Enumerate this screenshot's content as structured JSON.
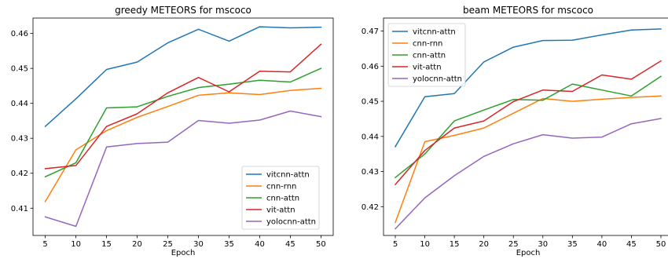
{
  "chart_data": [
    {
      "type": "line",
      "title": "greedy METEORS for mscoco",
      "xlabel": "Epoch",
      "ylabel": "",
      "x": [
        5,
        10,
        15,
        20,
        25,
        30,
        35,
        40,
        45,
        50
      ],
      "xlim": [
        3,
        52
      ],
      "ylim": [
        0.4022,
        0.4644
      ],
      "yticks": [
        0.41,
        0.42,
        0.43,
        0.44,
        0.45,
        0.46
      ],
      "ytick_labels": [
        "0.41",
        "0.42",
        "0.43",
        "0.44",
        "0.45",
        "0.46"
      ],
      "legend_loc": "lower-right",
      "grid": false,
      "series": [
        {
          "name": "vitcnn-attn",
          "color": "#1f77b4",
          "values": [
            0.4334,
            0.4413,
            0.4497,
            0.4518,
            0.4573,
            0.4612,
            0.4578,
            0.4619,
            0.4616,
            0.4618
          ]
        },
        {
          "name": "cnn-rnn",
          "color": "#ff7f0e",
          "values": [
            0.4119,
            0.4267,
            0.4322,
            0.436,
            0.4391,
            0.4423,
            0.443,
            0.4425,
            0.4437,
            0.4443
          ]
        },
        {
          "name": "cnn-attn",
          "color": "#2ca02c",
          "values": [
            0.419,
            0.423,
            0.4387,
            0.439,
            0.442,
            0.4445,
            0.4455,
            0.4466,
            0.4461,
            0.45
          ]
        },
        {
          "name": "vit-attn",
          "color": "#d62728",
          "values": [
            0.4213,
            0.4222,
            0.4334,
            0.437,
            0.443,
            0.4474,
            0.4433,
            0.4492,
            0.449,
            0.4569
          ]
        },
        {
          "name": "yolocnn-attn",
          "color": "#9467bd",
          "values": [
            0.4075,
            0.4048,
            0.4275,
            0.4285,
            0.4289,
            0.4351,
            0.4343,
            0.4352,
            0.4378,
            0.4362
          ]
        }
      ]
    },
    {
      "type": "line",
      "title": "beam METEORS for mscoco",
      "xlabel": "Epoch",
      "ylabel": "",
      "x": [
        5,
        10,
        15,
        20,
        25,
        30,
        35,
        40,
        45,
        50
      ],
      "xlim": [
        3,
        52
      ],
      "ylim": [
        0.4118,
        0.4737
      ],
      "yticks": [
        0.42,
        0.43,
        0.44,
        0.45,
        0.46,
        0.47
      ],
      "ytick_labels": [
        "0.42",
        "0.43",
        "0.44",
        "0.45",
        "0.46",
        "0.47"
      ],
      "legend_loc": "upper-left",
      "grid": false,
      "series": [
        {
          "name": "vitcnn-attn",
          "color": "#1f77b4",
          "values": [
            0.4371,
            0.4513,
            0.4522,
            0.4612,
            0.4654,
            0.4673,
            0.4674,
            0.4689,
            0.4703,
            0.4706
          ]
        },
        {
          "name": "cnn-rnn",
          "color": "#ff7f0e",
          "values": [
            0.4155,
            0.4385,
            0.4403,
            0.4424,
            0.4466,
            0.4508,
            0.45,
            0.4506,
            0.4511,
            0.4515
          ]
        },
        {
          "name": "cnn-attn",
          "color": "#2ca02c",
          "values": [
            0.4283,
            0.435,
            0.4444,
            0.4475,
            0.4505,
            0.4503,
            0.4549,
            0.4532,
            0.4515,
            0.4571
          ]
        },
        {
          "name": "vit-attn",
          "color": "#d62728",
          "values": [
            0.4263,
            0.436,
            0.4424,
            0.4444,
            0.4499,
            0.4532,
            0.4528,
            0.4575,
            0.4563,
            0.4615
          ]
        },
        {
          "name": "yolocnn-attn",
          "color": "#9467bd",
          "values": [
            0.4137,
            0.4225,
            0.4288,
            0.4343,
            0.4379,
            0.4405,
            0.4395,
            0.4398,
            0.4436,
            0.4451
          ]
        }
      ]
    }
  ]
}
